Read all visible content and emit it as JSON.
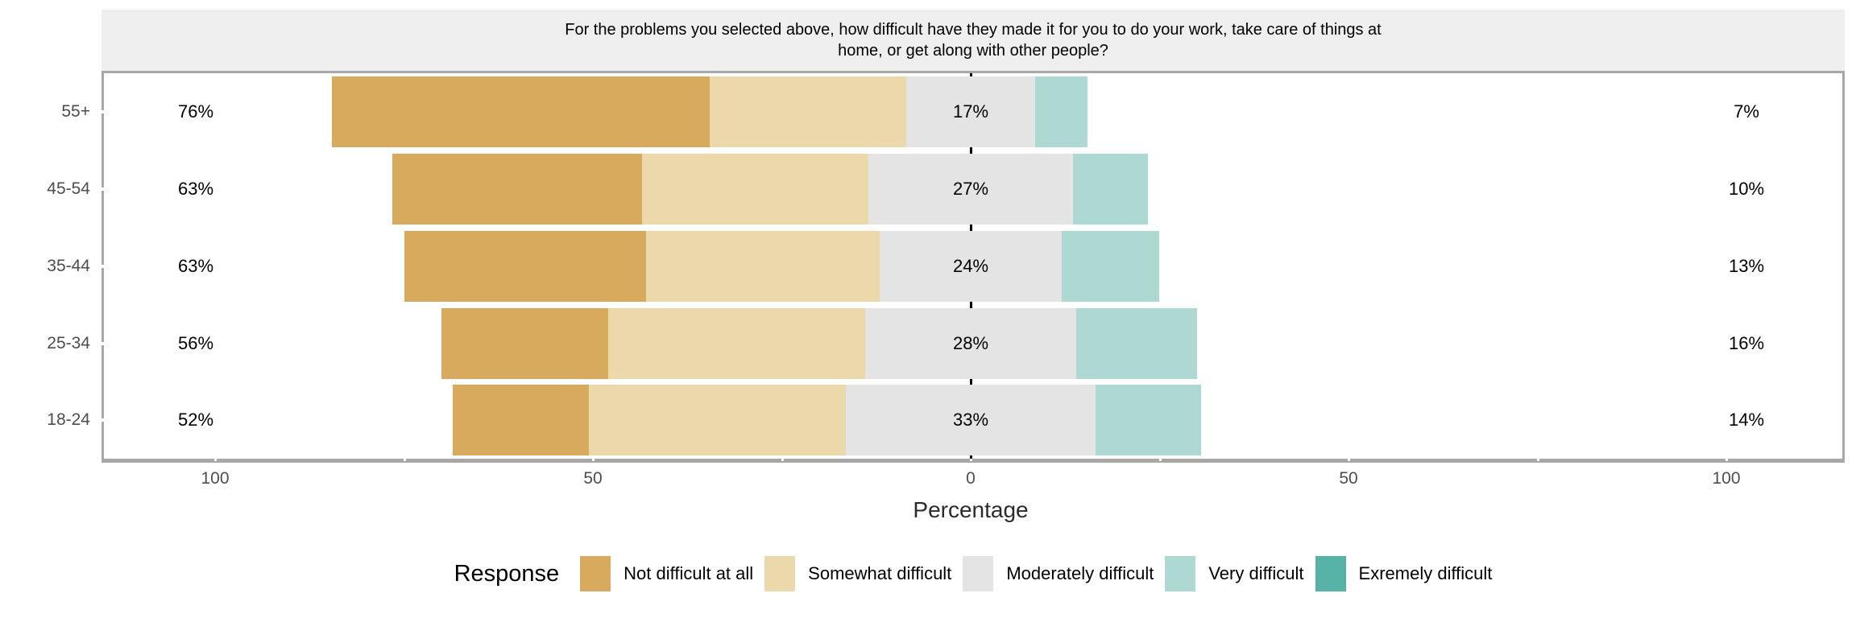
{
  "figure": {
    "background": "#ffffff",
    "strip_background": "#efefef",
    "panel_border_color": "#a8a8a8",
    "zero_line_color": "#000000",
    "axis_text_color": "#4d4d4d",
    "bar_label_color": "#000000"
  },
  "chart_data": {
    "type": "bar",
    "subtype": "diverging-stacked-likert",
    "orientation": "horizontal",
    "title_lines": [
      "For the problems you selected above, how difficult have they made it for you to do your work, take care of things at",
      "home, or get along with other people?"
    ],
    "xlabel": "Percentage",
    "x_tick_labels": [
      "100",
      "50",
      "0",
      "50",
      "100"
    ],
    "x_tick_values": [
      -100,
      -50,
      0,
      50,
      100
    ],
    "minor_tick_step": 25,
    "x_range": [
      -115,
      115
    ],
    "grid": "off",
    "categories": [
      "55+",
      "45-54",
      "35-44",
      "25-34",
      "18-24"
    ],
    "series": [
      {
        "name": "Not difficult at all",
        "color": "#d7aa5d",
        "values": [
          50,
          33,
          32,
          22,
          18
        ]
      },
      {
        "name": "Somewhat difficult",
        "color": "#ebd9ab",
        "values": [
          26,
          30,
          31,
          34,
          34
        ]
      },
      {
        "name": "Moderately difficult",
        "color": "#e4e4e4",
        "values": [
          17,
          27,
          24,
          28,
          33
        ]
      },
      {
        "name": "Very difficult",
        "color": "#aed9d2",
        "values": [
          7,
          10,
          13,
          16,
          14
        ]
      },
      {
        "name": "Exremely difficult",
        "color": "#57b2a8",
        "values": [
          0,
          0,
          0,
          0,
          0
        ]
      }
    ],
    "neutral_series_centered_on_zero": "Moderately difficult",
    "annotations": {
      "left_labels": [
        "76%",
        "63%",
        "63%",
        "56%",
        "52%"
      ],
      "center_labels": [
        "17%",
        "27%",
        "24%",
        "28%",
        "33%"
      ],
      "right_labels": [
        "7%",
        "10%",
        "13%",
        "16%",
        "14%"
      ]
    },
    "legend": {
      "title": "Response",
      "position": "bottom"
    }
  }
}
